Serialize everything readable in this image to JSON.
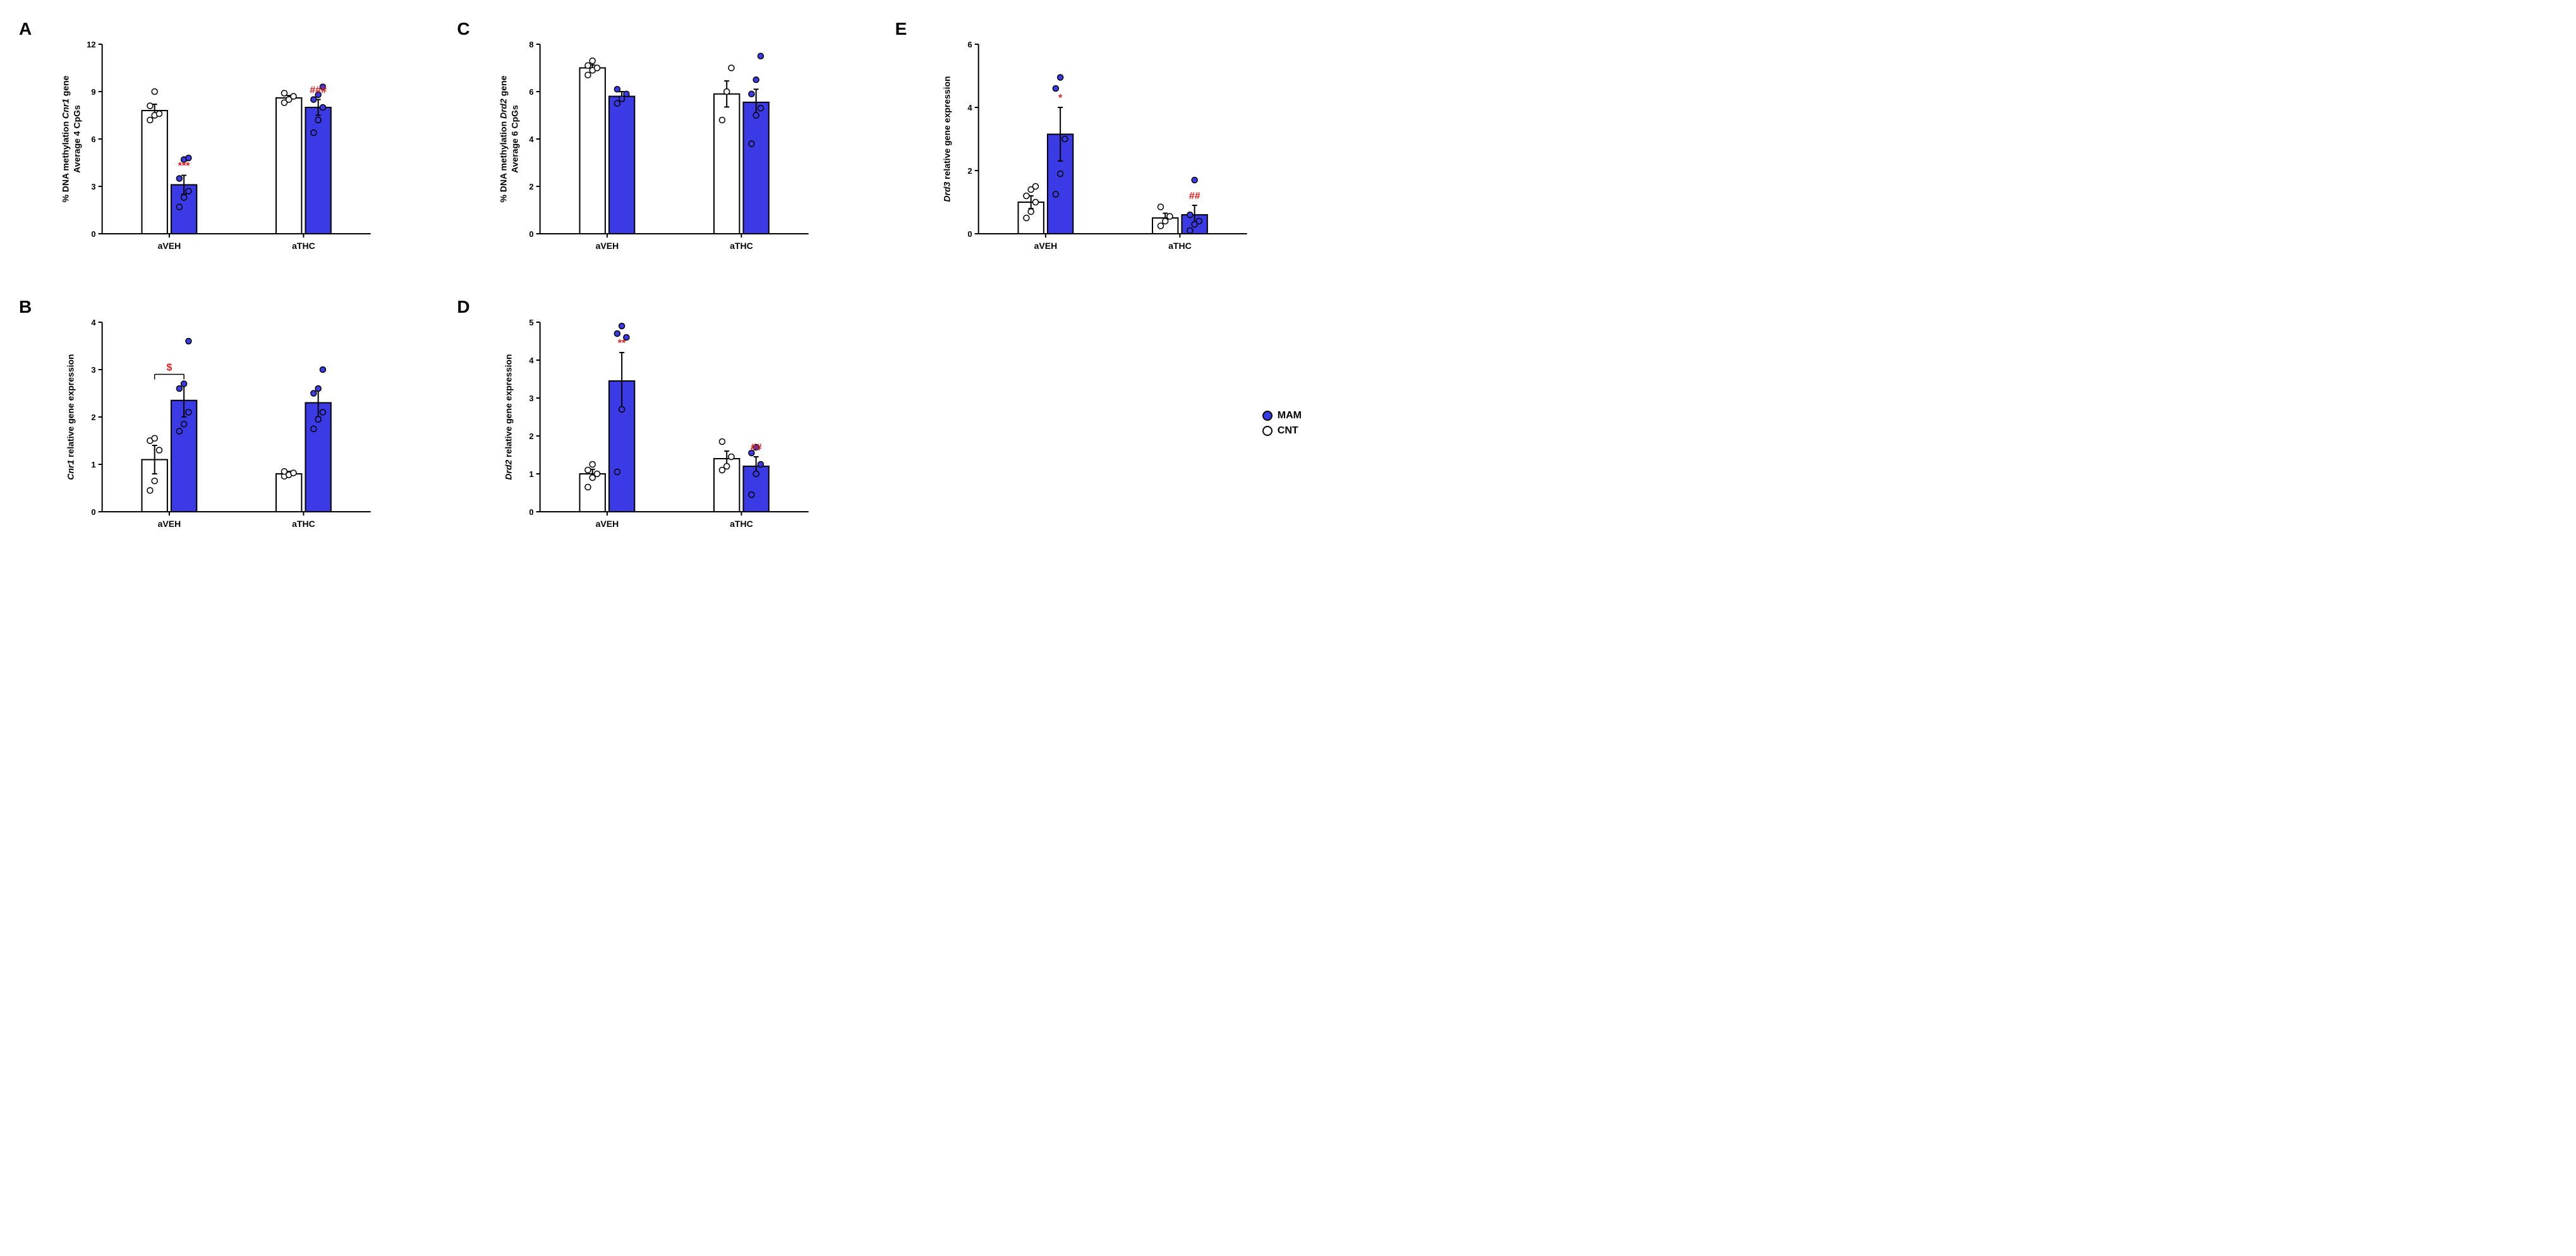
{
  "colors": {
    "cnt_fill": "#ffffff",
    "mam_fill": "#3b3be6",
    "stroke": "#000000",
    "sig_red": "#e41a1c",
    "background": "#ffffff"
  },
  "typography": {
    "panel_letter_fontsize": 28,
    "axis_label_fontsize": 14,
    "tick_fontsize": 13,
    "annotation_fontsize": 16,
    "legend_fontsize": 16
  },
  "legend": {
    "mam_label": "MAM",
    "cnt_label": "CNT"
  },
  "panels": {
    "A": {
      "ylabel_line1": "% DNA methylation Cnr1 gene",
      "ylabel_line2": "Average 4 CpGs",
      "ylabel_italic_word": "Cnr1",
      "ylim": [
        0,
        12
      ],
      "ytick_step": 3,
      "groups": [
        "aVEH",
        "aTHC"
      ],
      "bars": [
        {
          "group": 0,
          "series": "CNT",
          "mean": 7.8,
          "err": 0.4,
          "points": [
            7.2,
            7.5,
            7.6,
            8.1,
            9.0
          ]
        },
        {
          "group": 0,
          "series": "MAM",
          "mean": 3.1,
          "err": 0.6,
          "points": [
            1.7,
            2.3,
            2.7,
            3.5,
            4.7,
            4.8
          ],
          "annot": "***"
        },
        {
          "group": 1,
          "series": "CNT",
          "mean": 8.6,
          "err": 0.15,
          "points": [
            8.3,
            8.5,
            8.7,
            8.9
          ]
        },
        {
          "group": 1,
          "series": "MAM",
          "mean": 8.0,
          "err": 0.5,
          "points": [
            6.4,
            7.2,
            8.0,
            8.5,
            8.8,
            9.3
          ],
          "annot": "###"
        }
      ]
    },
    "B": {
      "ylabel_line1": "Cnr1 relative gene expression",
      "ylabel_italic_word": "Cnr1",
      "ylim": [
        0,
        4
      ],
      "ytick_step": 1,
      "groups": [
        "aVEH",
        "aTHC"
      ],
      "bars": [
        {
          "group": 0,
          "series": "CNT",
          "mean": 1.1,
          "err": 0.3,
          "points": [
            0.45,
            0.65,
            1.3,
            1.5,
            1.55
          ]
        },
        {
          "group": 0,
          "series": "MAM",
          "mean": 2.35,
          "err": 0.35,
          "points": [
            1.7,
            1.85,
            2.1,
            2.6,
            2.7,
            3.6
          ]
        },
        {
          "group": 1,
          "series": "CNT",
          "mean": 0.8,
          "err": 0.05,
          "points": [
            0.75,
            0.78,
            0.82,
            0.85
          ]
        },
        {
          "group": 1,
          "series": "MAM",
          "mean": 2.3,
          "err": 0.3,
          "points": [
            1.75,
            1.95,
            2.1,
            2.5,
            2.6,
            3.0
          ]
        }
      ],
      "bracket": {
        "from_bar": 0,
        "to_bar": 1,
        "label": "$",
        "y": 2.9
      }
    },
    "C": {
      "ylabel_line1": "% DNA methylation Drd2 gene",
      "ylabel_line2": "Average 6 CpGs",
      "ylabel_italic_word": "Drd2",
      "ylim": [
        0,
        8
      ],
      "ytick_step": 2,
      "groups": [
        "aVEH",
        "aTHC"
      ],
      "bars": [
        {
          "group": 0,
          "series": "CNT",
          "mean": 7.0,
          "err": 0.13,
          "points": [
            6.7,
            6.9,
            7.0,
            7.1,
            7.3
          ]
        },
        {
          "group": 0,
          "series": "MAM",
          "mean": 5.8,
          "err": 0.2,
          "points": [
            5.5,
            5.7,
            5.9,
            6.1
          ]
        },
        {
          "group": 1,
          "series": "CNT",
          "mean": 5.9,
          "err": 0.55,
          "points": [
            4.8,
            6.0,
            7.0
          ]
        },
        {
          "group": 1,
          "series": "MAM",
          "mean": 5.55,
          "err": 0.55,
          "points": [
            3.8,
            5.0,
            5.3,
            5.9,
            6.5,
            7.5
          ]
        }
      ]
    },
    "D": {
      "ylabel_line1": "Drd2 relative gene expression",
      "ylabel_italic_word": "Drd2",
      "ylim": [
        0,
        5
      ],
      "ytick_step": 1,
      "groups": [
        "aVEH",
        "aTHC"
      ],
      "bars": [
        {
          "group": 0,
          "series": "CNT",
          "mean": 1.0,
          "err": 0.12,
          "points": [
            0.65,
            0.9,
            1.0,
            1.1,
            1.25
          ]
        },
        {
          "group": 0,
          "series": "MAM",
          "mean": 3.45,
          "err": 0.75,
          "points": [
            1.05,
            2.7,
            4.6,
            4.7,
            4.9
          ],
          "annot": "**"
        },
        {
          "group": 1,
          "series": "CNT",
          "mean": 1.4,
          "err": 0.2,
          "points": [
            1.1,
            1.2,
            1.45,
            1.85
          ]
        },
        {
          "group": 1,
          "series": "MAM",
          "mean": 1.2,
          "err": 0.25,
          "points": [
            0.45,
            1.0,
            1.25,
            1.55,
            1.7
          ],
          "annot": "##"
        }
      ]
    },
    "E": {
      "ylabel_line1": "Drd3 relative gene expression",
      "ylabel_italic_word": "Drd3",
      "ylim": [
        0,
        6
      ],
      "ytick_step": 2,
      "groups": [
        "aVEH",
        "aTHC"
      ],
      "bars": [
        {
          "group": 0,
          "series": "CNT",
          "mean": 1.0,
          "err": 0.2,
          "points": [
            0.5,
            0.7,
            1.0,
            1.2,
            1.4,
            1.5
          ]
        },
        {
          "group": 0,
          "series": "MAM",
          "mean": 3.15,
          "err": 0.85,
          "points": [
            1.25,
            1.9,
            3.0,
            4.6,
            4.95
          ],
          "annot": "*"
        },
        {
          "group": 1,
          "series": "CNT",
          "mean": 0.5,
          "err": 0.15,
          "points": [
            0.25,
            0.4,
            0.55,
            0.85
          ]
        },
        {
          "group": 1,
          "series": "MAM",
          "mean": 0.6,
          "err": 0.3,
          "points": [
            0.1,
            0.3,
            0.4,
            0.6,
            1.7
          ],
          "annot": "##"
        }
      ]
    }
  },
  "layout": {
    "bar_width_rel": 0.38,
    "group_gap_rel": 0.9,
    "marker_radius": 4.5,
    "stroke_width": 2,
    "error_cap_width": 8
  }
}
